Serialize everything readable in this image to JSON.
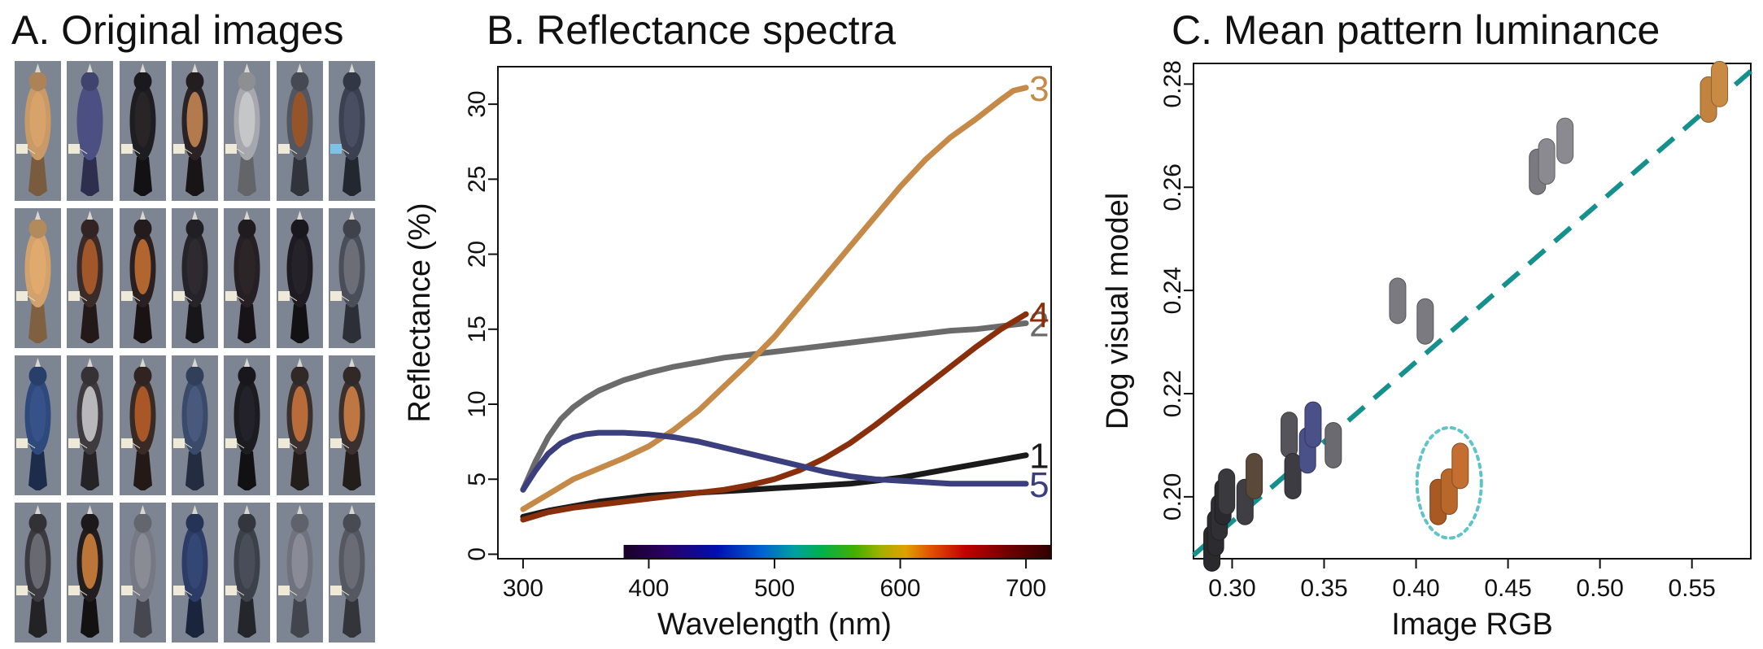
{
  "figure": {
    "panel_titles": {
      "a": "A. Original images",
      "b": "B. Reflectance spectra",
      "c": "C. Mean pattern luminance"
    }
  },
  "photos": {
    "rows": [
      [
        {
          "body": "#c99a66",
          "breast": "#d8a36c",
          "tag": "#efe9d8"
        },
        {
          "body": "#4c4f82",
          "breast": "#4c4f82",
          "tag": "#efe9d8"
        },
        {
          "body": "#1e1d22",
          "breast": "#2a2628",
          "tag": "#efe9d8"
        },
        {
          "body": "#2a2224",
          "breast": "#b98050",
          "tag": "#efe9d8"
        },
        {
          "body": "#a6a8ad",
          "breast": "#c6c7c9",
          "tag": "#efe9d8"
        },
        {
          "body": "#525660",
          "breast": "#9a5428",
          "tag": "#efe9d8"
        },
        {
          "body": "#3b4150",
          "breast": "#4a5062",
          "tag": "#7fc2e8"
        }
      ],
      [
        {
          "body": "#d3a26c",
          "breast": "#e0ab70",
          "tag": "#efe9d8"
        },
        {
          "body": "#3a2a28",
          "breast": "#a65a2a",
          "tag": "#efe9d8"
        },
        {
          "body": "#2a2022",
          "breast": "#b86a30",
          "tag": "#efe9d8"
        },
        {
          "body": "#26242a",
          "breast": "#2e2b30",
          "tag": "#efe9d8"
        },
        {
          "body": "#262024",
          "breast": "#2c2628",
          "tag": "#efe9d8"
        },
        {
          "body": "#1e1c22",
          "breast": "#26232a",
          "tag": "#efe9d8"
        },
        {
          "body": "#4a4e58",
          "breast": "#6d7078",
          "tag": "#efe9d8"
        }
      ],
      [
        {
          "body": "#2e4a7c",
          "breast": "#37528a",
          "tag": "#efe9d8"
        },
        {
          "body": "#3e3a3e",
          "breast": "#bfbfc2",
          "tag": "#efe9d8"
        },
        {
          "body": "#3a2a26",
          "breast": "#b05a28",
          "tag": "#efe9d8"
        },
        {
          "body": "#3a4a6a",
          "breast": "#4a5a7e",
          "tag": "#efe9d8"
        },
        {
          "body": "#1c1b20",
          "breast": "#24222a",
          "tag": "#efe9d8"
        },
        {
          "body": "#3a302e",
          "breast": "#c0703a",
          "tag": "#efe9d8"
        },
        {
          "body": "#3a302e",
          "breast": "#c57a45",
          "tag": "#efe9d8"
        }
      ],
      [
        {
          "body": "#3a3a40",
          "breast": "#6a6c74",
          "tag": "#efe9d8"
        },
        {
          "body": "#221d1e",
          "breast": "#c47a3a",
          "tag": "#efe9d8"
        },
        {
          "body": "#767883",
          "breast": "#8a8c96",
          "tag": "#efe9d8"
        },
        {
          "body": "#2c3c66",
          "breast": "#354774",
          "tag": "#efe9d8"
        },
        {
          "body": "#3c4048",
          "breast": "#4a4e58",
          "tag": "#efe9d8"
        },
        {
          "body": "#70737e",
          "breast": "#8a8d98",
          "tag": "#efe9d8"
        },
        {
          "body": "#555860",
          "breast": "#6a6d76",
          "tag": "#efe9d8"
        }
      ]
    ]
  },
  "chart_data": [
    {
      "type": "line",
      "title": "B. Reflectance spectra",
      "xlabel": "Wavelength (nm)",
      "ylabel": "Reflectance (%)",
      "xlim": [
        280,
        720
      ],
      "ylim": [
        -0.3,
        32.5
      ],
      "xticks": [
        300,
        400,
        500,
        600,
        700
      ],
      "yticks": [
        0,
        5,
        10,
        15,
        20,
        25,
        30
      ],
      "spectrum_bar": {
        "from": 380,
        "to": 720
      },
      "series": [
        {
          "name": "1",
          "color": "#1a1a1a",
          "x": [
            300,
            320,
            340,
            360,
            380,
            400,
            420,
            440,
            460,
            480,
            500,
            520,
            540,
            560,
            580,
            600,
            620,
            640,
            660,
            680,
            700
          ],
          "y": [
            2.5,
            2.9,
            3.2,
            3.5,
            3.7,
            3.9,
            4.0,
            4.1,
            4.2,
            4.3,
            4.4,
            4.5,
            4.6,
            4.7,
            4.9,
            5.1,
            5.4,
            5.7,
            6.0,
            6.3,
            6.6
          ]
        },
        {
          "name": "2",
          "color": "#6b6b6b",
          "x": [
            300,
            310,
            320,
            330,
            340,
            350,
            360,
            380,
            400,
            420,
            440,
            460,
            480,
            500,
            520,
            540,
            560,
            580,
            600,
            620,
            640,
            660,
            680,
            700
          ],
          "y": [
            4.3,
            6.2,
            7.8,
            9.0,
            9.8,
            10.4,
            10.9,
            11.6,
            12.1,
            12.5,
            12.8,
            13.1,
            13.3,
            13.5,
            13.7,
            13.9,
            14.1,
            14.3,
            14.5,
            14.7,
            14.9,
            15.0,
            15.2,
            15.4
          ]
        },
        {
          "name": "3",
          "color": "#c58a48",
          "x": [
            300,
            320,
            340,
            360,
            380,
            400,
            420,
            440,
            460,
            480,
            500,
            520,
            540,
            560,
            580,
            600,
            620,
            640,
            660,
            680,
            690,
            700
          ],
          "y": [
            3.0,
            4.0,
            5.0,
            5.7,
            6.4,
            7.2,
            8.3,
            9.6,
            11.2,
            12.8,
            14.5,
            16.5,
            18.5,
            20.5,
            22.5,
            24.5,
            26.3,
            27.8,
            29.0,
            30.3,
            30.9,
            31.1
          ]
        },
        {
          "name": "4",
          "color": "#8a2f0c",
          "x": [
            300,
            320,
            340,
            360,
            380,
            400,
            420,
            440,
            460,
            480,
            500,
            520,
            540,
            560,
            580,
            600,
            620,
            640,
            660,
            680,
            700
          ],
          "y": [
            2.3,
            2.8,
            3.1,
            3.3,
            3.5,
            3.7,
            3.9,
            4.1,
            4.3,
            4.6,
            5.0,
            5.6,
            6.4,
            7.4,
            8.6,
            9.9,
            11.2,
            12.5,
            13.8,
            15.0,
            16.0
          ]
        },
        {
          "name": "5",
          "color": "#3b3f7e",
          "x": [
            300,
            310,
            320,
            330,
            340,
            350,
            360,
            380,
            400,
            420,
            440,
            460,
            480,
            500,
            520,
            540,
            560,
            580,
            600,
            620,
            640,
            660,
            680,
            700
          ],
          "y": [
            4.3,
            5.6,
            6.7,
            7.4,
            7.8,
            8.0,
            8.1,
            8.1,
            8.0,
            7.8,
            7.5,
            7.1,
            6.7,
            6.3,
            5.9,
            5.5,
            5.2,
            5.0,
            4.9,
            4.8,
            4.7,
            4.7,
            4.7,
            4.7
          ]
        }
      ]
    },
    {
      "type": "scatter",
      "title": "C. Mean pattern luminance",
      "xlabel": "Image RGB",
      "ylabel": "Dog visual model",
      "xlim": [
        0.279,
        0.582
      ],
      "ylim": [
        0.188,
        0.284
      ],
      "xticks": [
        "0.30",
        "0.35",
        "0.40",
        "0.45",
        "0.50",
        "0.55"
      ],
      "yticks": [
        "0.20",
        "0.22",
        "0.24",
        "0.26",
        "0.28"
      ],
      "trend_line": {
        "color": "#14918e",
        "x": [
          0.279,
          0.582
        ],
        "y": [
          0.1887,
          0.2825
        ]
      },
      "highlight_ellipse": {
        "color": "#5fc4c8",
        "cx": 0.418,
        "cy": 0.2027,
        "rx": 0.0175,
        "ry": 0.0107
      },
      "points": [
        {
          "x": 0.289,
          "y": 0.19,
          "color": "#2a2a2e"
        },
        {
          "x": 0.291,
          "y": 0.193,
          "color": "#2c2c30"
        },
        {
          "x": 0.293,
          "y": 0.196,
          "color": "#303034"
        },
        {
          "x": 0.295,
          "y": 0.199,
          "color": "#2a2a2e"
        },
        {
          "x": 0.297,
          "y": 0.201,
          "color": "#3a3a3e"
        },
        {
          "x": 0.307,
          "y": 0.199,
          "color": "#3e3e44"
        },
        {
          "x": 0.312,
          "y": 0.204,
          "color": "#5a4838"
        },
        {
          "x": 0.331,
          "y": 0.212,
          "color": "#54545a"
        },
        {
          "x": 0.333,
          "y": 0.204,
          "color": "#3c3c42"
        },
        {
          "x": 0.341,
          "y": 0.209,
          "color": "#4a5088"
        },
        {
          "x": 0.344,
          "y": 0.214,
          "color": "#4a5088"
        },
        {
          "x": 0.355,
          "y": 0.21,
          "color": "#6a6a70"
        },
        {
          "x": 0.39,
          "y": 0.238,
          "color": "#7a7a80"
        },
        {
          "x": 0.405,
          "y": 0.234,
          "color": "#7a7a80"
        },
        {
          "x": 0.412,
          "y": 0.199,
          "color": "#a85a22"
        },
        {
          "x": 0.418,
          "y": 0.201,
          "color": "#b8682a"
        },
        {
          "x": 0.424,
          "y": 0.206,
          "color": "#c46e32"
        },
        {
          "x": 0.466,
          "y": 0.263,
          "color": "#7a7a80"
        },
        {
          "x": 0.471,
          "y": 0.265,
          "color": "#8a8a90"
        },
        {
          "x": 0.481,
          "y": 0.269,
          "color": "#8a8a90"
        },
        {
          "x": 0.559,
          "y": 0.277,
          "color": "#c2833e"
        },
        {
          "x": 0.565,
          "y": 0.28,
          "color": "#c98a44"
        }
      ]
    }
  ]
}
